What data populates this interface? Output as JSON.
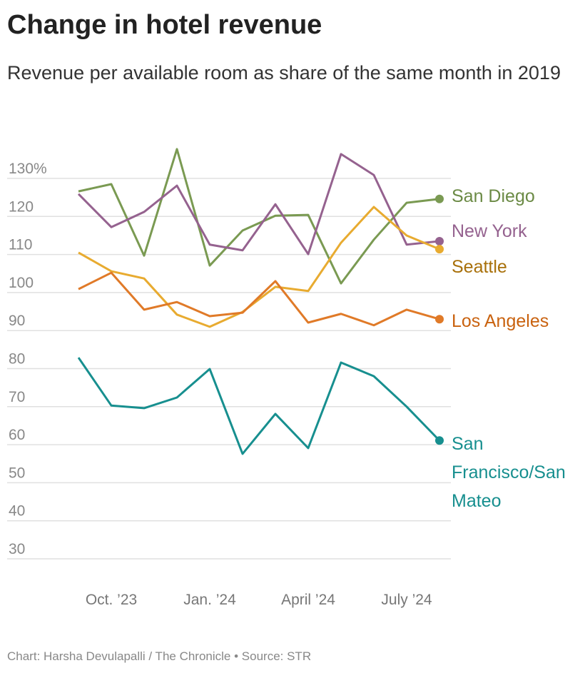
{
  "title": "Change in hotel revenue",
  "subtitle": "Revenue per available room as share of the same month in 2019",
  "credit": "Chart: Harsha Devulapalli / The Chronicle • Source: STR",
  "chart_data": {
    "type": "line",
    "title": "Change in hotel revenue",
    "subtitle": "Revenue per available room as share of the same month in 2019",
    "x": [
      "2023-09",
      "2023-10",
      "2023-11",
      "2023-12",
      "2024-01",
      "2024-02",
      "2024-03",
      "2024-04",
      "2024-05",
      "2024-06",
      "2024-07",
      "2024-08"
    ],
    "x_ticks": [
      {
        "x": "2023-10",
        "label": "Oct. ’23"
      },
      {
        "x": "2024-01",
        "label": "Jan. ’24"
      },
      {
        "x": "2024-04",
        "label": "April ’24"
      },
      {
        "x": "2024-07",
        "label": "July ’24"
      }
    ],
    "y_ticks": [
      {
        "v": 130,
        "label": "130%"
      },
      {
        "v": 120,
        "label": "120"
      },
      {
        "v": 110,
        "label": "110"
      },
      {
        "v": 100,
        "label": "100"
      },
      {
        "v": 90,
        "label": "90"
      },
      {
        "v": 80,
        "label": "80"
      },
      {
        "v": 70,
        "label": "70"
      },
      {
        "v": 60,
        "label": "60"
      },
      {
        "v": 50,
        "label": "50"
      },
      {
        "v": 40,
        "label": "40"
      },
      {
        "v": 30,
        "label": "30"
      }
    ],
    "ylim": [
      25,
      137
    ],
    "grid": true,
    "legend": "direct labels at line ends",
    "series": [
      {
        "name": "San Diego",
        "color": "#7a9a52",
        "label_color": "#6b8a45",
        "values": [
          126.6,
          128.5,
          109.7,
          137.7,
          107.1,
          116.3,
          120.2,
          120.4,
          102.4,
          113.9,
          123.6,
          124.6
        ]
      },
      {
        "name": "New York",
        "color": "#95628f",
        "label_color": "#95628f",
        "values": [
          125.9,
          117.2,
          121.2,
          128.1,
          112.6,
          111.1,
          123.2,
          110.1,
          136.4,
          130.9,
          112.6,
          113.5
        ]
      },
      {
        "name": "Seattle",
        "color": "#e8ab30",
        "label_color": "#a8700a",
        "values": [
          110.5,
          105.6,
          103.7,
          94.2,
          91.0,
          94.9,
          101.5,
          100.4,
          113.1,
          122.5,
          115.0,
          111.4
        ]
      },
      {
        "name": "Los Angeles",
        "color": "#e07a28",
        "label_color": "#c9620f",
        "values": [
          100.9,
          105.2,
          95.5,
          97.5,
          93.8,
          94.7,
          103.0,
          92.1,
          94.4,
          91.4,
          95.5,
          93.0
        ]
      },
      {
        "name": "San Francisco/San Mateo",
        "label_lines": [
          "San",
          "Francisco/San",
          "Mateo"
        ],
        "color": "#178f8f",
        "label_color": "#178f8f",
        "values": [
          82.9,
          70.3,
          69.6,
          72.4,
          79.9,
          57.6,
          68.1,
          59.1,
          81.6,
          78.0,
          70.0,
          61.1
        ]
      }
    ]
  }
}
